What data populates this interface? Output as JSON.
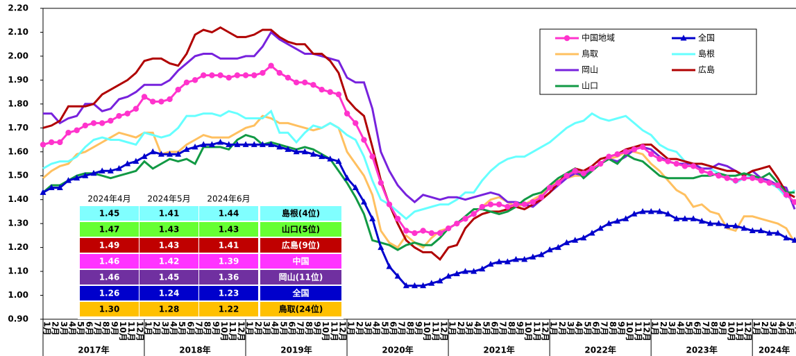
{
  "chart_data": {
    "type": "line",
    "categories": [
      "1月",
      "2月",
      "3月",
      "4月",
      "5月",
      "6月",
      "7月",
      "8月",
      "9月",
      "10月",
      "11月",
      "12月",
      "1月",
      "2月",
      "3月",
      "4月",
      "5月",
      "6月",
      "7月",
      "8月",
      "9月",
      "10月",
      "11月",
      "12月",
      "1月",
      "2月",
      "3月",
      "4月",
      "5月",
      "6月",
      "7月",
      "8月",
      "9月",
      "10月",
      "11月",
      "12月",
      "1月",
      "2月",
      "3月",
      "4月",
      "5月",
      "6月",
      "7月",
      "8月",
      "9月",
      "10月",
      "11月",
      "12月",
      "1月",
      "2月",
      "3月",
      "4月",
      "5月",
      "6月",
      "7月",
      "8月",
      "9月",
      "10月",
      "11月",
      "12月",
      "1月",
      "2月",
      "3月",
      "4月",
      "5月",
      "6月",
      "7月",
      "8月",
      "9月",
      "10月",
      "11月",
      "12月",
      "1月",
      "2月",
      "3月",
      "4月",
      "5月",
      "6月",
      "7月",
      "8月",
      "9月",
      "10月",
      "11月",
      "12月",
      "1月",
      "2月",
      "3月",
      "4月",
      "5月",
      "6月"
    ],
    "year_labels": [
      "2017年",
      "2018年",
      "2019年",
      "2020年",
      "2021年",
      "2022年",
      "2023年",
      "2024年"
    ],
    "ylim": [
      0.9,
      2.2
    ],
    "yticks": [
      {
        "value": 0.9,
        "label": "0.90"
      },
      {
        "value": 1.0,
        "label": "1.00"
      },
      {
        "value": 1.1,
        "label": "1.10"
      },
      {
        "value": 1.2,
        "label": "1.20"
      },
      {
        "value": 1.3,
        "label": "1.30"
      },
      {
        "value": 1.4,
        "label": "1.40"
      },
      {
        "value": 1.5,
        "label": "1.50"
      },
      {
        "value": 1.6,
        "label": "1.60"
      },
      {
        "value": 1.7,
        "label": "1.70"
      },
      {
        "value": 1.8,
        "label": "1.80"
      },
      {
        "value": 1.9,
        "label": "1.90"
      },
      {
        "value": 2.0,
        "label": "2.00"
      },
      {
        "value": 2.1,
        "label": "2.10"
      },
      {
        "value": 2.2,
        "label": "2.20"
      }
    ],
    "series": [
      {
        "name": "中国地域",
        "color": "#ff33cc",
        "marker": "circle",
        "values": [
          1.63,
          1.64,
          1.64,
          1.68,
          1.69,
          1.71,
          1.72,
          1.72,
          1.73,
          1.75,
          1.76,
          1.78,
          1.83,
          1.81,
          1.81,
          1.82,
          1.86,
          1.89,
          1.9,
          1.92,
          1.92,
          1.92,
          1.91,
          1.92,
          1.92,
          1.92,
          1.93,
          1.96,
          1.93,
          1.91,
          1.89,
          1.89,
          1.88,
          1.86,
          1.85,
          1.84,
          1.76,
          1.72,
          1.65,
          1.58,
          1.47,
          1.38,
          1.32,
          1.27,
          1.26,
          1.27,
          1.26,
          1.26,
          1.28,
          1.3,
          1.32,
          1.34,
          1.37,
          1.38,
          1.38,
          1.37,
          1.38,
          1.38,
          1.39,
          1.41,
          1.45,
          1.47,
          1.5,
          1.52,
          1.51,
          1.53,
          1.55,
          1.58,
          1.59,
          1.6,
          1.61,
          1.62,
          1.59,
          1.57,
          1.56,
          1.55,
          1.54,
          1.54,
          1.52,
          1.51,
          1.5,
          1.49,
          1.48,
          1.49,
          1.49,
          1.48,
          1.47,
          1.46,
          1.42,
          1.39
        ]
      },
      {
        "name": "全国",
        "color": "#0000cc",
        "marker": "triangle",
        "values": [
          1.43,
          1.45,
          1.45,
          1.48,
          1.49,
          1.5,
          1.51,
          1.52,
          1.52,
          1.53,
          1.55,
          1.56,
          1.58,
          1.6,
          1.59,
          1.59,
          1.59,
          1.61,
          1.62,
          1.63,
          1.63,
          1.64,
          1.63,
          1.63,
          1.63,
          1.63,
          1.63,
          1.63,
          1.62,
          1.61,
          1.6,
          1.6,
          1.59,
          1.58,
          1.57,
          1.56,
          1.49,
          1.45,
          1.39,
          1.32,
          1.2,
          1.12,
          1.08,
          1.04,
          1.04,
          1.04,
          1.05,
          1.06,
          1.08,
          1.09,
          1.1,
          1.1,
          1.11,
          1.13,
          1.14,
          1.14,
          1.15,
          1.15,
          1.16,
          1.17,
          1.19,
          1.2,
          1.22,
          1.23,
          1.24,
          1.26,
          1.28,
          1.3,
          1.31,
          1.32,
          1.34,
          1.35,
          1.35,
          1.35,
          1.34,
          1.32,
          1.32,
          1.32,
          1.31,
          1.3,
          1.3,
          1.29,
          1.29,
          1.28,
          1.27,
          1.27,
          1.26,
          1.26,
          1.24,
          1.23
        ]
      },
      {
        "name": "鳥取",
        "color": "#ffc060",
        "marker": "none",
        "values": [
          1.49,
          1.52,
          1.54,
          1.55,
          1.59,
          1.6,
          1.62,
          1.64,
          1.66,
          1.68,
          1.67,
          1.66,
          1.68,
          1.68,
          1.59,
          1.6,
          1.6,
          1.63,
          1.65,
          1.67,
          1.66,
          1.66,
          1.66,
          1.68,
          1.7,
          1.71,
          1.75,
          1.74,
          1.72,
          1.72,
          1.71,
          1.7,
          1.69,
          1.7,
          1.72,
          1.7,
          1.6,
          1.55,
          1.5,
          1.42,
          1.27,
          1.22,
          1.2,
          1.25,
          1.22,
          1.2,
          1.24,
          1.27,
          1.28,
          1.3,
          1.32,
          1.34,
          1.37,
          1.4,
          1.41,
          1.39,
          1.37,
          1.38,
          1.4,
          1.42,
          1.45,
          1.48,
          1.49,
          1.5,
          1.5,
          1.52,
          1.55,
          1.57,
          1.58,
          1.6,
          1.6,
          1.59,
          1.55,
          1.52,
          1.48,
          1.44,
          1.42,
          1.37,
          1.38,
          1.35,
          1.34,
          1.28,
          1.27,
          1.33,
          1.33,
          1.32,
          1.31,
          1.3,
          1.28,
          1.22
        ]
      },
      {
        "name": "島根",
        "color": "#66ffff",
        "marker": "none",
        "values": [
          1.53,
          1.55,
          1.56,
          1.56,
          1.58,
          1.62,
          1.65,
          1.66,
          1.65,
          1.65,
          1.64,
          1.63,
          1.68,
          1.67,
          1.66,
          1.67,
          1.7,
          1.75,
          1.75,
          1.76,
          1.76,
          1.75,
          1.77,
          1.76,
          1.74,
          1.74,
          1.74,
          1.77,
          1.68,
          1.68,
          1.64,
          1.68,
          1.71,
          1.7,
          1.72,
          1.7,
          1.67,
          1.65,
          1.58,
          1.48,
          1.4,
          1.38,
          1.35,
          1.32,
          1.35,
          1.36,
          1.37,
          1.38,
          1.38,
          1.4,
          1.43,
          1.43,
          1.48,
          1.52,
          1.55,
          1.57,
          1.58,
          1.58,
          1.6,
          1.62,
          1.64,
          1.67,
          1.7,
          1.72,
          1.73,
          1.76,
          1.74,
          1.73,
          1.74,
          1.75,
          1.72,
          1.69,
          1.67,
          1.63,
          1.61,
          1.6,
          1.56,
          1.55,
          1.53,
          1.53,
          1.51,
          1.5,
          1.47,
          1.49,
          1.5,
          1.48,
          1.47,
          1.45,
          1.41,
          1.44
        ]
      },
      {
        "name": "岡山",
        "color": "#7722dd",
        "marker": "none",
        "values": [
          1.76,
          1.76,
          1.72,
          1.74,
          1.75,
          1.8,
          1.8,
          1.77,
          1.78,
          1.82,
          1.83,
          1.85,
          1.88,
          1.88,
          1.88,
          1.9,
          1.94,
          1.97,
          2.0,
          2.01,
          2.01,
          1.99,
          1.99,
          1.99,
          2.0,
          2.0,
          2.04,
          2.1,
          2.07,
          2.05,
          2.03,
          2.01,
          2.01,
          2.0,
          1.99,
          1.98,
          1.91,
          1.89,
          1.89,
          1.78,
          1.6,
          1.52,
          1.46,
          1.42,
          1.39,
          1.42,
          1.41,
          1.4,
          1.41,
          1.41,
          1.4,
          1.41,
          1.42,
          1.43,
          1.42,
          1.39,
          1.39,
          1.38,
          1.37,
          1.4,
          1.43,
          1.46,
          1.49,
          1.51,
          1.5,
          1.52,
          1.55,
          1.57,
          1.56,
          1.58,
          1.61,
          1.62,
          1.61,
          1.58,
          1.56,
          1.55,
          1.55,
          1.55,
          1.53,
          1.53,
          1.55,
          1.54,
          1.52,
          1.5,
          1.52,
          1.49,
          1.48,
          1.46,
          1.45,
          1.36
        ]
      },
      {
        "name": "広島",
        "color": "#b00000",
        "marker": "none",
        "values": [
          1.7,
          1.71,
          1.73,
          1.79,
          1.79,
          1.79,
          1.8,
          1.84,
          1.86,
          1.88,
          1.9,
          1.93,
          1.98,
          1.99,
          1.99,
          1.97,
          1.96,
          2.01,
          2.09,
          2.11,
          2.1,
          2.12,
          2.1,
          2.08,
          2.08,
          2.09,
          2.11,
          2.11,
          2.08,
          2.06,
          2.05,
          2.05,
          2.01,
          2.01,
          1.98,
          1.93,
          1.82,
          1.78,
          1.75,
          1.62,
          1.48,
          1.38,
          1.3,
          1.23,
          1.2,
          1.18,
          1.18,
          1.15,
          1.2,
          1.21,
          1.28,
          1.32,
          1.34,
          1.35,
          1.35,
          1.36,
          1.37,
          1.36,
          1.38,
          1.4,
          1.43,
          1.47,
          1.51,
          1.53,
          1.52,
          1.54,
          1.57,
          1.58,
          1.59,
          1.61,
          1.62,
          1.63,
          1.63,
          1.6,
          1.57,
          1.57,
          1.56,
          1.55,
          1.55,
          1.54,
          1.53,
          1.52,
          1.52,
          1.5,
          1.52,
          1.53,
          1.54,
          1.49,
          1.43,
          1.41
        ]
      },
      {
        "name": "山口",
        "color": "#119944",
        "marker": "none",
        "values": [
          1.43,
          1.46,
          1.46,
          1.48,
          1.5,
          1.51,
          1.51,
          1.5,
          1.49,
          1.5,
          1.51,
          1.52,
          1.56,
          1.53,
          1.55,
          1.57,
          1.56,
          1.57,
          1.55,
          1.62,
          1.62,
          1.62,
          1.61,
          1.65,
          1.67,
          1.66,
          1.63,
          1.64,
          1.63,
          1.62,
          1.61,
          1.62,
          1.61,
          1.59,
          1.57,
          1.52,
          1.47,
          1.41,
          1.34,
          1.23,
          1.22,
          1.21,
          1.19,
          1.21,
          1.22,
          1.21,
          1.21,
          1.24,
          1.28,
          1.3,
          1.33,
          1.36,
          1.36,
          1.35,
          1.34,
          1.35,
          1.37,
          1.4,
          1.42,
          1.43,
          1.46,
          1.49,
          1.51,
          1.53,
          1.49,
          1.52,
          1.55,
          1.57,
          1.55,
          1.59,
          1.57,
          1.56,
          1.53,
          1.5,
          1.49,
          1.49,
          1.49,
          1.49,
          1.5,
          1.5,
          1.51,
          1.5,
          1.5,
          1.51,
          1.5,
          1.49,
          1.51,
          1.47,
          1.43,
          1.43
        ]
      }
    ]
  },
  "table": {
    "columns": [
      "2024年4月",
      "2024年5月",
      "2024年6月"
    ],
    "rows": [
      {
        "values": [
          "1.45",
          "1.41",
          "1.44"
        ],
        "label": "島根(4位)",
        "color": "#80ffff",
        "text_color": "#000000"
      },
      {
        "values": [
          "1.47",
          "1.43",
          "1.43"
        ],
        "label": "山口(5位)",
        "color": "#66ff33",
        "text_color": "#000000"
      },
      {
        "values": [
          "1.49",
          "1.43",
          "1.41"
        ],
        "label": "広島(9位)",
        "color": "#c00000",
        "text_color": "#ffffff"
      },
      {
        "values": [
          "1.46",
          "1.42",
          "1.39"
        ],
        "label": "中国",
        "color": "#ff33ff",
        "text_color": "#ffffff"
      },
      {
        "values": [
          "1.46",
          "1.45",
          "1.36"
        ],
        "label": "岡山(11位)",
        "color": "#7030a0",
        "text_color": "#ffffff"
      },
      {
        "values": [
          "1.26",
          "1.24",
          "1.23"
        ],
        "label": "全国",
        "color": "#0000cc",
        "text_color": "#ffffff"
      },
      {
        "values": [
          "1.30",
          "1.28",
          "1.22"
        ],
        "label": "鳥取(24位)",
        "color": "#ffc000",
        "text_color": "#000000"
      }
    ]
  }
}
